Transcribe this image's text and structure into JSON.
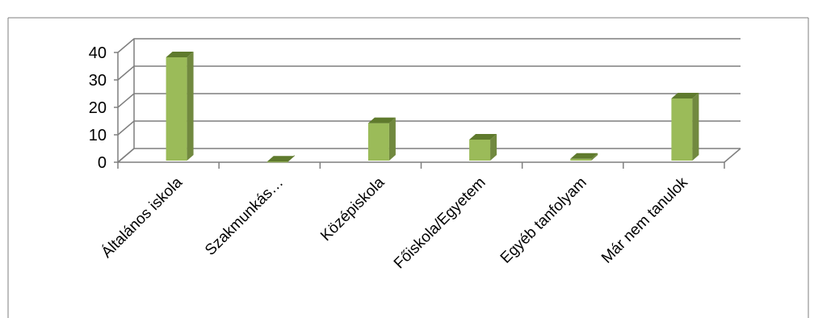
{
  "chart_data": {
    "type": "bar",
    "style": "3d-column",
    "categories": [
      "Általános iskola",
      "Szakmunkás…",
      "Középiskola",
      "Főiskola/Egyetem",
      "Egyéb tanfolyam",
      "Már nem tanulok"
    ],
    "series": [
      {
        "values": [
          40,
          2,
          16,
          10,
          3,
          25
        ]
      }
    ],
    "yticks": [
      0,
      10,
      20,
      30,
      40
    ],
    "ylim": [
      0,
      40
    ],
    "grid": true,
    "legend": "none",
    "colors": {
      "bar_front": "#9bbb59",
      "bar_side": "#71893f",
      "bar_top": "#5f7a2d",
      "grid": "#7f7f7f",
      "axis": "#7f7f7f"
    }
  }
}
